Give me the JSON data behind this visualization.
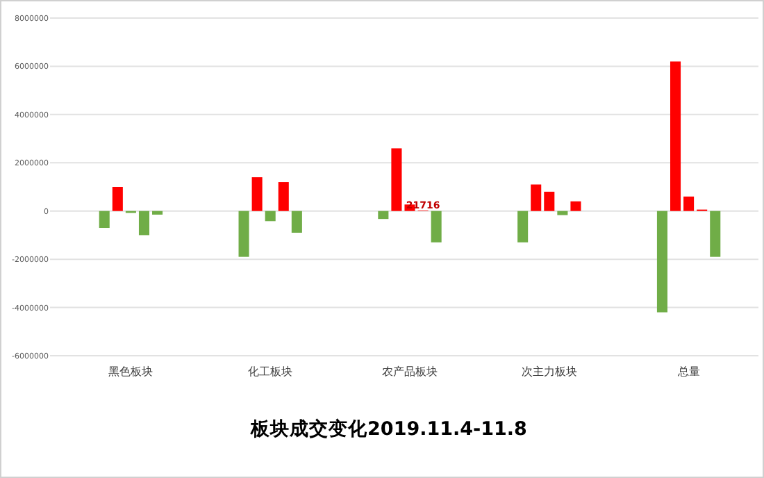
{
  "chart_data": {
    "type": "bar",
    "title": "板块成交变化2019.11.4-11.8",
    "categories": [
      "黑色板块",
      "化工板块",
      "农产品板块",
      "次主力板块",
      "总量"
    ],
    "series": [
      {
        "colors": [
          "#70ad47",
          "#70ad47",
          "#70ad47",
          "#70ad47",
          "#70ad47"
        ],
        "values": [
          -700000,
          -1900000,
          -330000,
          -1300000,
          -4200000
        ]
      },
      {
        "colors": [
          "#ff0000",
          "#ff0000",
          "#ff0000",
          "#ff0000",
          "#ff0000"
        ],
        "values": [
          1000000,
          1400000,
          2600000,
          1100000,
          6200000
        ]
      },
      {
        "colors": [
          "#70ad47",
          "#70ad47",
          "#ff0000",
          "#ff0000",
          "#ff0000"
        ],
        "values": [
          -80000,
          -420000,
          270000,
          800000,
          600000
        ]
      },
      {
        "colors": [
          "#70ad47",
          "#ff0000",
          "#ff0000",
          "#70ad47",
          "#ff0000"
        ],
        "values": [
          -1000000,
          1200000,
          21716,
          -170000,
          60000
        ],
        "value_labels": [
          null,
          null,
          "21716",
          null,
          null
        ]
      },
      {
        "colors": [
          "#70ad47",
          "#70ad47",
          "#70ad47",
          "#ff0000",
          "#70ad47"
        ],
        "values": [
          -150000,
          -900000,
          -1300000,
          400000,
          -1900000
        ]
      }
    ],
    "ylim": [
      -6000000,
      8000000
    ],
    "yticks": [
      -6000000,
      -4000000,
      -2000000,
      0,
      2000000,
      4000000,
      6000000,
      8000000
    ],
    "grid": "y"
  }
}
